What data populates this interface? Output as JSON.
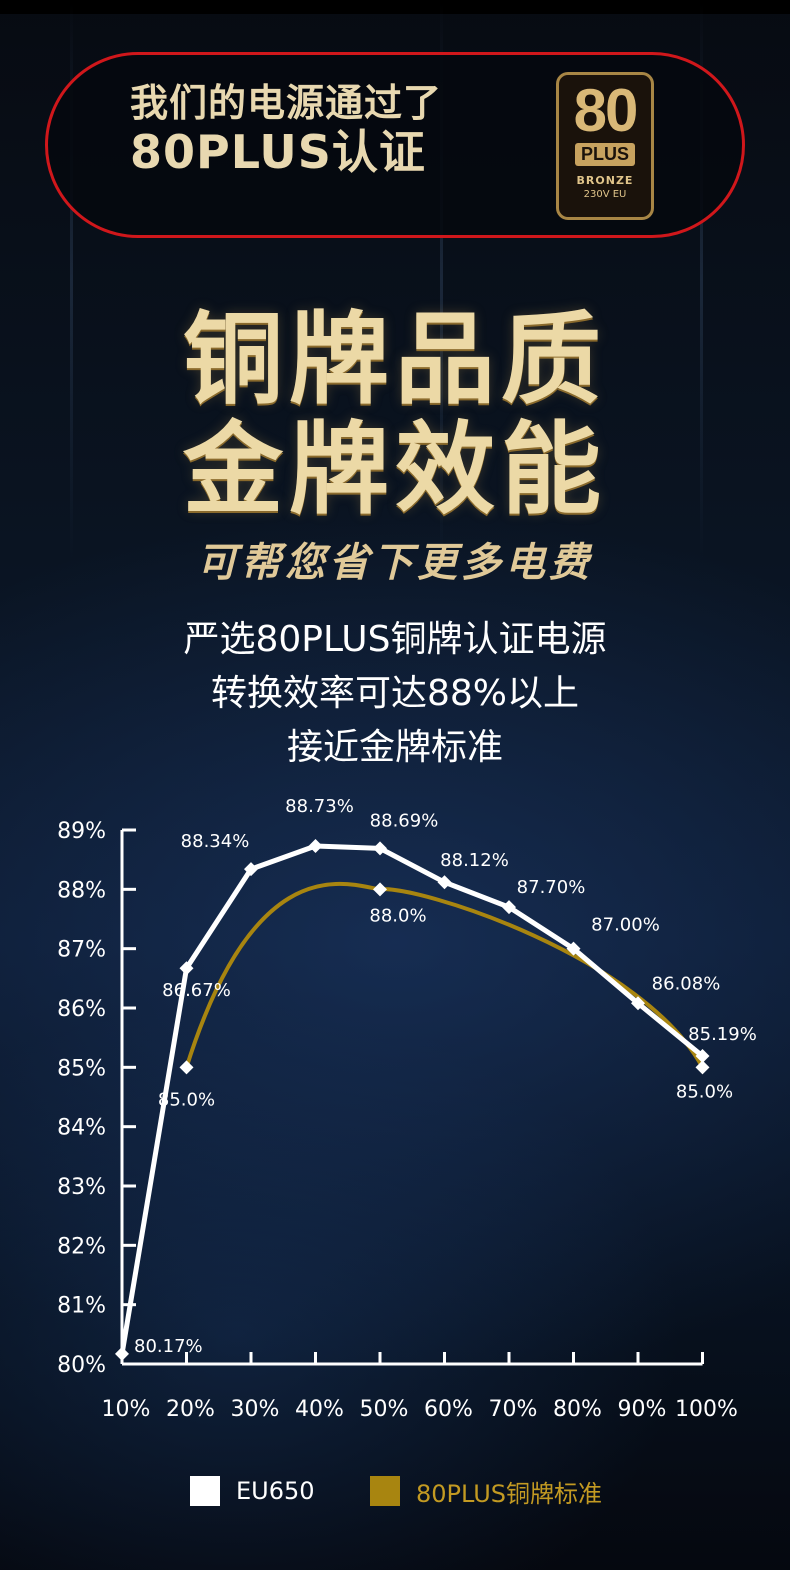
{
  "header": {
    "line1": "我们的电源通过了",
    "line2": "80PLUS认证",
    "logo": {
      "big": "80",
      "plus": "PLUS",
      "grade": "BRONZE",
      "voltage": "230V EU"
    }
  },
  "titles": {
    "line1": "铜牌品质",
    "line2": "金牌效能"
  },
  "subtitle": "可帮您省下更多电费",
  "description": [
    "严选80PLUS铜牌认证电源",
    "转换效率可达88%以上",
    "接近金牌标准"
  ],
  "colors": {
    "accent_gold": "#a88510",
    "frame_red": "#d0171b",
    "series_eu650": "#ffffff"
  },
  "chart_data": {
    "type": "line",
    "categories": [
      "10%",
      "20%",
      "30%",
      "40%",
      "50%",
      "60%",
      "70%",
      "80%",
      "90%",
      "100%"
    ],
    "y_ticks": [
      "80%",
      "81%",
      "82%",
      "83%",
      "84%",
      "85%",
      "86%",
      "87%",
      "88%",
      "89%"
    ],
    "ylim": [
      80,
      89
    ],
    "grid": false,
    "legend_position": "bottom",
    "series": [
      {
        "name": "EU650",
        "color": "#ffffff",
        "x": [
          "10%",
          "20%",
          "30%",
          "40%",
          "50%",
          "60%",
          "70%",
          "80%",
          "90%",
          "100%"
        ],
        "values": [
          80.17,
          86.67,
          88.34,
          88.73,
          88.69,
          88.12,
          87.7,
          87.0,
          86.08,
          85.19
        ],
        "labels": [
          "80.17%",
          "86.67%",
          "88.34%",
          "88.73%",
          "88.69%",
          "88.12%",
          "87.70%",
          "87.00%",
          "86.08%",
          "85.19%"
        ]
      },
      {
        "name": "80PLUS铜牌标准",
        "color": "#a88510",
        "x": [
          "20%",
          "50%",
          "100%"
        ],
        "values": [
          85.0,
          88.0,
          85.0
        ],
        "labels": [
          "85.0%",
          "88.0%",
          "85.0%"
        ],
        "smooth": true
      }
    ]
  }
}
